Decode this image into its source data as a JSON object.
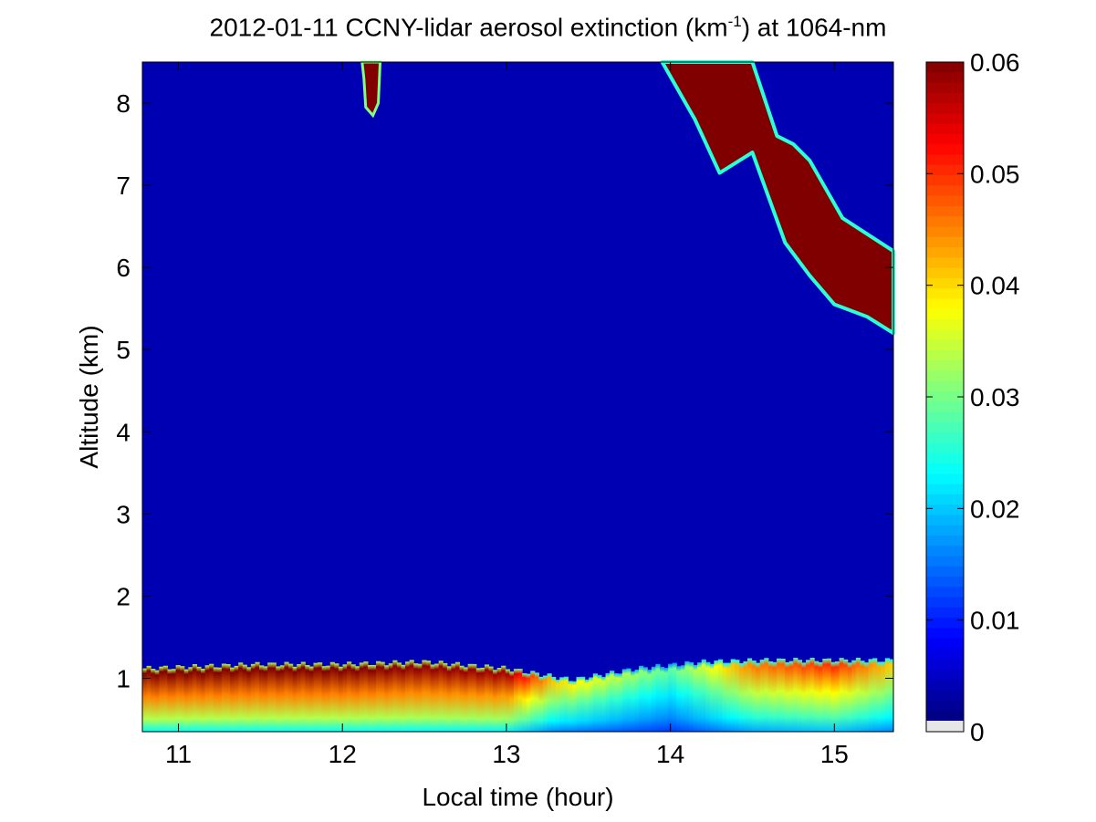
{
  "chart_data": {
    "type": "heatmap",
    "date": "2012-01-11",
    "title_parts": {
      "prefix": "2012-01-11 CCNY-lidar aerosol extinction (km",
      "superscript": "-1",
      "suffix": ") at 1064-nm"
    },
    "xlabel": "Local time (hour)",
    "ylabel": "Altitude (km)",
    "xlim": [
      10.78,
      15.36
    ],
    "ylim": [
      0.35,
      8.5
    ],
    "x_ticks": [
      11,
      12,
      13,
      14,
      15
    ],
    "y_ticks": [
      1,
      2,
      3,
      4,
      5,
      6,
      7,
      8
    ],
    "x_tick_labels": [
      "11",
      "12",
      "13",
      "14",
      "15"
    ],
    "y_tick_labels": [
      "1",
      "2",
      "3",
      "4",
      "5",
      "6",
      "7",
      "8"
    ],
    "colorbar": {
      "colormap": "jet",
      "range": [
        0,
        0.06
      ],
      "ticks": [
        0,
        0.01,
        0.02,
        0.03,
        0.04,
        0.05,
        0.06
      ],
      "tick_labels": [
        "0",
        "0.01",
        "0.02",
        "0.03",
        "0.04",
        "0.05",
        "0.06"
      ]
    },
    "background_extinction": 0.003,
    "features": {
      "boundary_layer": {
        "description": "aerosol layer near the surface",
        "top_altitude_km": [
          {
            "time": 10.8,
            "alt": 1.12
          },
          {
            "time": 11.5,
            "alt": 1.17
          },
          {
            "time": 12.0,
            "alt": 1.17
          },
          {
            "time": 12.5,
            "alt": 1.2
          },
          {
            "time": 13.0,
            "alt": 1.12
          },
          {
            "time": 13.4,
            "alt": 0.98
          },
          {
            "time": 13.8,
            "alt": 1.12
          },
          {
            "time": 14.2,
            "alt": 1.2
          },
          {
            "time": 14.6,
            "alt": 1.22
          },
          {
            "time": 15.0,
            "alt": 1.22
          },
          {
            "time": 15.36,
            "alt": 1.22
          }
        ],
        "layer_top_extinction": [
          {
            "time": 10.8,
            "value": 0.06
          },
          {
            "time": 12.0,
            "value": 0.06
          },
          {
            "time": 13.0,
            "value": 0.058
          },
          {
            "time": 13.3,
            "value": 0.04
          },
          {
            "time": 14.0,
            "value": 0.028
          },
          {
            "time": 14.5,
            "value": 0.045
          },
          {
            "time": 15.0,
            "value": 0.05
          },
          {
            "time": 15.36,
            "value": 0.04
          }
        ]
      },
      "cloud_layers": [
        {
          "name": "upper cloud near 12 h",
          "time_range": [
            12.12,
            12.23
          ],
          "base_km": 7.85,
          "top_km": 8.5
        },
        {
          "name": "cirrus 14-15.4 h",
          "base_profile": [
            {
              "time": 13.95,
              "alt": 8.5
            },
            {
              "time": 14.15,
              "alt": 7.8
            },
            {
              "time": 14.3,
              "alt": 7.15
            },
            {
              "time": 14.5,
              "alt": 7.4
            },
            {
              "time": 14.7,
              "alt": 6.3
            },
            {
              "time": 14.85,
              "alt": 5.9
            },
            {
              "time": 15.0,
              "alt": 5.55
            },
            {
              "time": 15.2,
              "alt": 5.4
            },
            {
              "time": 15.36,
              "alt": 5.2
            }
          ],
          "top_profile": [
            {
              "time": 14.2,
              "alt": 8.5
            },
            {
              "time": 14.5,
              "alt": 8.5
            },
            {
              "time": 14.65,
              "alt": 7.6
            },
            {
              "time": 14.75,
              "alt": 7.5
            },
            {
              "time": 14.85,
              "alt": 7.3
            },
            {
              "time": 15.05,
              "alt": 6.6
            },
            {
              "time": 15.36,
              "alt": 6.2
            }
          ]
        }
      ]
    }
  }
}
